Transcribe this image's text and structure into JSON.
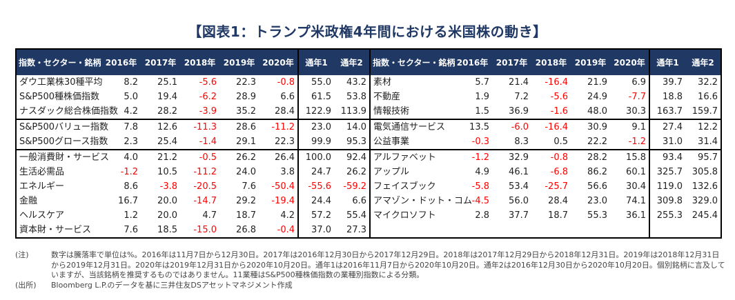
{
  "title": "【図表1：トランプ米政権4年間における米国株の動き】",
  "headers": [
    "指数・セクター・銘柄",
    "2016年",
    "2017年",
    "2018年",
    "2019年",
    "2020年",
    "通年1",
    "通年2"
  ],
  "groups": [
    [
      {
        "left": [
          "ダウ工業株30種平均",
          "8.2",
          "25.1",
          "-5.6",
          "22.3",
          "-0.8",
          "55.0",
          "43.2"
        ],
        "right": [
          "素材",
          "5.7",
          "21.4",
          "-16.4",
          "21.9",
          "6.9",
          "39.7",
          "32.2"
        ]
      },
      {
        "left": [
          "S&P500種株価指数",
          "5.0",
          "19.4",
          "-6.2",
          "28.9",
          "6.6",
          "61.5",
          "53.8"
        ],
        "right": [
          "不動産",
          "1.9",
          "7.2",
          "-5.6",
          "24.9",
          "-7.7",
          "18.8",
          "16.6"
        ]
      },
      {
        "left": [
          "ナスダック総合株価指数",
          "4.2",
          "28.2",
          "-3.9",
          "35.2",
          "28.4",
          "122.9",
          "113.9"
        ],
        "right": [
          "情報技術",
          "1.5",
          "36.9",
          "-1.6",
          "48.0",
          "30.3",
          "163.7",
          "159.7"
        ]
      }
    ],
    [
      {
        "left": [
          "S&P500バリュー指数",
          "7.8",
          "12.6",
          "-11.3",
          "28.6",
          "-11.2",
          "23.0",
          "14.0"
        ],
        "right": [
          "電気通信サービス",
          "13.5",
          "-6.0",
          "-16.4",
          "30.9",
          "9.1",
          "27.4",
          "12.2"
        ]
      },
      {
        "left": [
          "S&P500グロース指数",
          "2.3",
          "25.4",
          "-1.4",
          "29.1",
          "22.3",
          "99.9",
          "95.3"
        ],
        "right": [
          "公益事業",
          "-0.3",
          "8.3",
          "0.5",
          "22.2",
          "-1.2",
          "31.0",
          "31.4"
        ]
      }
    ],
    [
      {
        "left": [
          "一般消費財・サービス",
          "4.0",
          "21.2",
          "-0.5",
          "26.2",
          "26.4",
          "100.0",
          "92.4"
        ],
        "right": [
          "アルファベット",
          "-1.2",
          "32.9",
          "-0.8",
          "28.2",
          "15.8",
          "93.4",
          "95.7"
        ]
      },
      {
        "left": [
          "生活必需品",
          "-1.2",
          "10.5",
          "-11.2",
          "24.0",
          "3.8",
          "24.7",
          "26.2"
        ],
        "right": [
          "アップル",
          "4.9",
          "46.1",
          "-6.8",
          "86.2",
          "60.1",
          "325.7",
          "305.8"
        ]
      },
      {
        "left": [
          "エネルギー",
          "8.6",
          "-3.8",
          "-20.5",
          "7.6",
          "-50.4",
          "-55.6",
          "-59.2"
        ],
        "right": [
          "フェイスブック",
          "-5.8",
          "53.4",
          "-25.7",
          "56.6",
          "30.4",
          "119.0",
          "132.6"
        ]
      },
      {
        "left": [
          "金融",
          "16.7",
          "20.0",
          "-14.7",
          "29.2",
          "-19.4",
          "24.4",
          "6.6"
        ],
        "right": [
          "アマゾン・ドット・コム",
          "-4.5",
          "56.0",
          "28.4",
          "23.0",
          "74.1",
          "309.8",
          "329.0"
        ]
      },
      {
        "left": [
          "ヘルスケア",
          "1.2",
          "20.0",
          "4.7",
          "18.7",
          "4.2",
          "57.2",
          "55.4"
        ],
        "right": [
          "マイクロソフト",
          "2.8",
          "37.7",
          "18.7",
          "55.3",
          "36.1",
          "255.3",
          "245.4"
        ]
      },
      {
        "left": [
          "資本財・サービス",
          "7.6",
          "18.5",
          "-15.0",
          "26.8",
          "-0.4",
          "37.0",
          "27.3"
        ],
        "right": [
          "",
          "",
          "",
          "",
          "",
          "",
          "",
          ""
        ]
      }
    ]
  ],
  "notes": {
    "note_label": "(注)",
    "note_text": "数字は騰落率で単位は%。2016年は11月7日から12月30日。2017年は2016年12月30日から2017年12月29日。2018年は2017年12月29日から2018年12月31日。2019年は2018年12月31日から2019年12月31日。2020年は2019年12月31日から2020年10月20日。通年1は2016年11月7日から2020年10月20日。通年2は2016年12月30日から2020年10月20日。個別銘柄に言及していますが、当該銘柄を推奨するものではありません。11業種はS&P500種株価指数の業種別指数による分類。",
    "source_label": "(出所)",
    "source_text": "Bloomberg L.P.のデータを基に三井住友DSアセットマネジメント作成"
  }
}
